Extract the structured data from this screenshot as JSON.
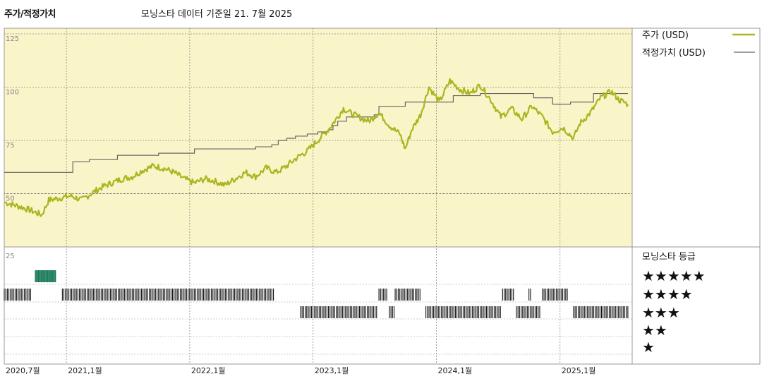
{
  "header": {
    "title": "주가/적정가치",
    "subtitle": "모닝스타 데이터 기준일 21. 7월 2025"
  },
  "chart_data": {
    "type": "line",
    "x_tick_labels": [
      "2020,7월",
      "2021,1월",
      "2022,1월",
      "2023,1월",
      "2024,1월",
      "2025,1월"
    ],
    "y_tick_labels": [
      "125",
      "100",
      "75",
      "50"
    ],
    "ylim": [
      25,
      125
    ],
    "legend_placement": "right",
    "grid": true,
    "series": [
      {
        "name": "주가 (USD)",
        "color": "#aab520",
        "points": [
          [
            "2020-07-01",
            46
          ],
          [
            "2020-08-15",
            44
          ],
          [
            "2020-09-20",
            42
          ],
          [
            "2020-10-20",
            40
          ],
          [
            "2020-11-10",
            47
          ],
          [
            "2020-12-15",
            48
          ],
          [
            "2021-01-15",
            49
          ],
          [
            "2021-02-15",
            47
          ],
          [
            "2021-03-15",
            50
          ],
          [
            "2021-04-15",
            53
          ],
          [
            "2021-05-15",
            55
          ],
          [
            "2021-06-15",
            57
          ],
          [
            "2021-07-15",
            58
          ],
          [
            "2021-08-15",
            61
          ],
          [
            "2021-09-15",
            63
          ],
          [
            "2021-10-15",
            62
          ],
          [
            "2021-11-15",
            60
          ],
          [
            "2021-12-15",
            57
          ],
          [
            "2022-01-15",
            55
          ],
          [
            "2022-02-15",
            57
          ],
          [
            "2022-03-15",
            56
          ],
          [
            "2022-04-15",
            54
          ],
          [
            "2022-05-15",
            57
          ],
          [
            "2022-06-15",
            60
          ],
          [
            "2022-07-15",
            58
          ],
          [
            "2022-08-15",
            62
          ],
          [
            "2022-09-15",
            60
          ],
          [
            "2022-10-15",
            63
          ],
          [
            "2022-11-15",
            67
          ],
          [
            "2022-12-15",
            70
          ],
          [
            "2023-01-15",
            75
          ],
          [
            "2023-02-15",
            80
          ],
          [
            "2023-03-15",
            86
          ],
          [
            "2023-04-01",
            90
          ],
          [
            "2023-04-20",
            88
          ],
          [
            "2023-05-15",
            86
          ],
          [
            "2023-06-15",
            84
          ],
          [
            "2023-07-15",
            88
          ],
          [
            "2023-08-15",
            82
          ],
          [
            "2023-09-15",
            78
          ],
          [
            "2023-10-01",
            71
          ],
          [
            "2023-10-20",
            80
          ],
          [
            "2023-11-15",
            87
          ],
          [
            "2023-12-10",
            100
          ],
          [
            "2024-01-10",
            93
          ],
          [
            "2024-02-10",
            103
          ],
          [
            "2024-03-10",
            99
          ],
          [
            "2024-04-10",
            97
          ],
          [
            "2024-05-10",
            101
          ],
          [
            "2024-06-10",
            94
          ],
          [
            "2024-07-10",
            86
          ],
          [
            "2024-08-10",
            90
          ],
          [
            "2024-09-10",
            85
          ],
          [
            "2024-10-10",
            91
          ],
          [
            "2024-11-10",
            86
          ],
          [
            "2024-12-10",
            79
          ],
          [
            "2025-01-10",
            81
          ],
          [
            "2025-02-10",
            76
          ],
          [
            "2025-03-01",
            83
          ],
          [
            "2025-04-01",
            88
          ],
          [
            "2025-05-01",
            95
          ],
          [
            "2025-06-01",
            98
          ],
          [
            "2025-06-25",
            94
          ],
          [
            "2025-07-21",
            92
          ]
        ]
      },
      {
        "name": "적정가치 (USD)",
        "color": "#666666",
        "steps": [
          [
            "2020-07-01",
            60
          ],
          [
            "2021-01-20",
            65
          ],
          [
            "2021-03-10",
            66
          ],
          [
            "2021-06-01",
            68
          ],
          [
            "2021-10-01",
            69
          ],
          [
            "2022-01-15",
            71
          ],
          [
            "2022-07-15",
            72
          ],
          [
            "2022-09-01",
            73
          ],
          [
            "2022-09-20",
            75
          ],
          [
            "2022-10-15",
            76
          ],
          [
            "2022-11-10",
            77
          ],
          [
            "2022-12-15",
            78
          ],
          [
            "2023-01-15",
            79
          ],
          [
            "2023-02-15",
            80
          ],
          [
            "2023-03-01",
            82
          ],
          [
            "2023-03-15",
            84
          ],
          [
            "2023-04-10",
            86
          ],
          [
            "2023-07-01",
            87
          ],
          [
            "2023-07-15",
            91
          ],
          [
            "2023-10-01",
            93
          ],
          [
            "2024-02-20",
            96
          ],
          [
            "2024-05-10",
            97
          ],
          [
            "2024-10-15",
            95
          ],
          [
            "2024-12-10",
            92
          ],
          [
            "2025-02-01",
            93
          ],
          [
            "2025-04-10",
            97
          ],
          [
            "2025-07-21",
            97
          ]
        ]
      }
    ],
    "rating": {
      "title": "모닝스타 등급",
      "rows": [
        "★★★★★",
        "★★★★",
        "★★★",
        "★★",
        "★"
      ],
      "segments": [
        {
          "stars": 5,
          "start": "2020-10-01",
          "end": "2020-12-01",
          "color": "#3a9a7c"
        },
        {
          "stars": 4,
          "start": "2020-07-01",
          "end": "2020-09-20",
          "color": "#222222"
        },
        {
          "stars": 4,
          "start": "2020-12-20",
          "end": "2022-09-10",
          "color": "#222222"
        },
        {
          "stars": 4,
          "start": "2023-07-15",
          "end": "2023-08-10",
          "color": "#222222"
        },
        {
          "stars": 4,
          "start": "2023-09-01",
          "end": "2023-11-15",
          "color": "#222222"
        },
        {
          "stars": 4,
          "start": "2024-07-15",
          "end": "2024-08-20",
          "color": "#222222"
        },
        {
          "stars": 4,
          "start": "2024-10-01",
          "end": "2024-10-06",
          "color": "#222222"
        },
        {
          "stars": 4,
          "start": "2024-11-10",
          "end": "2025-01-25",
          "color": "#222222"
        },
        {
          "stars": 3,
          "start": "2022-11-25",
          "end": "2023-07-10",
          "color": "#222222"
        },
        {
          "stars": 3,
          "start": "2023-08-15",
          "end": "2023-08-30",
          "color": "#222222"
        },
        {
          "stars": 3,
          "start": "2023-12-01",
          "end": "2024-07-10",
          "color": "#222222"
        },
        {
          "stars": 3,
          "start": "2024-08-25",
          "end": "2024-11-05",
          "color": "#222222"
        },
        {
          "stars": 3,
          "start": "2025-02-10",
          "end": "2025-07-21",
          "color": "#222222"
        }
      ]
    },
    "bottom_axis_label": "25"
  }
}
